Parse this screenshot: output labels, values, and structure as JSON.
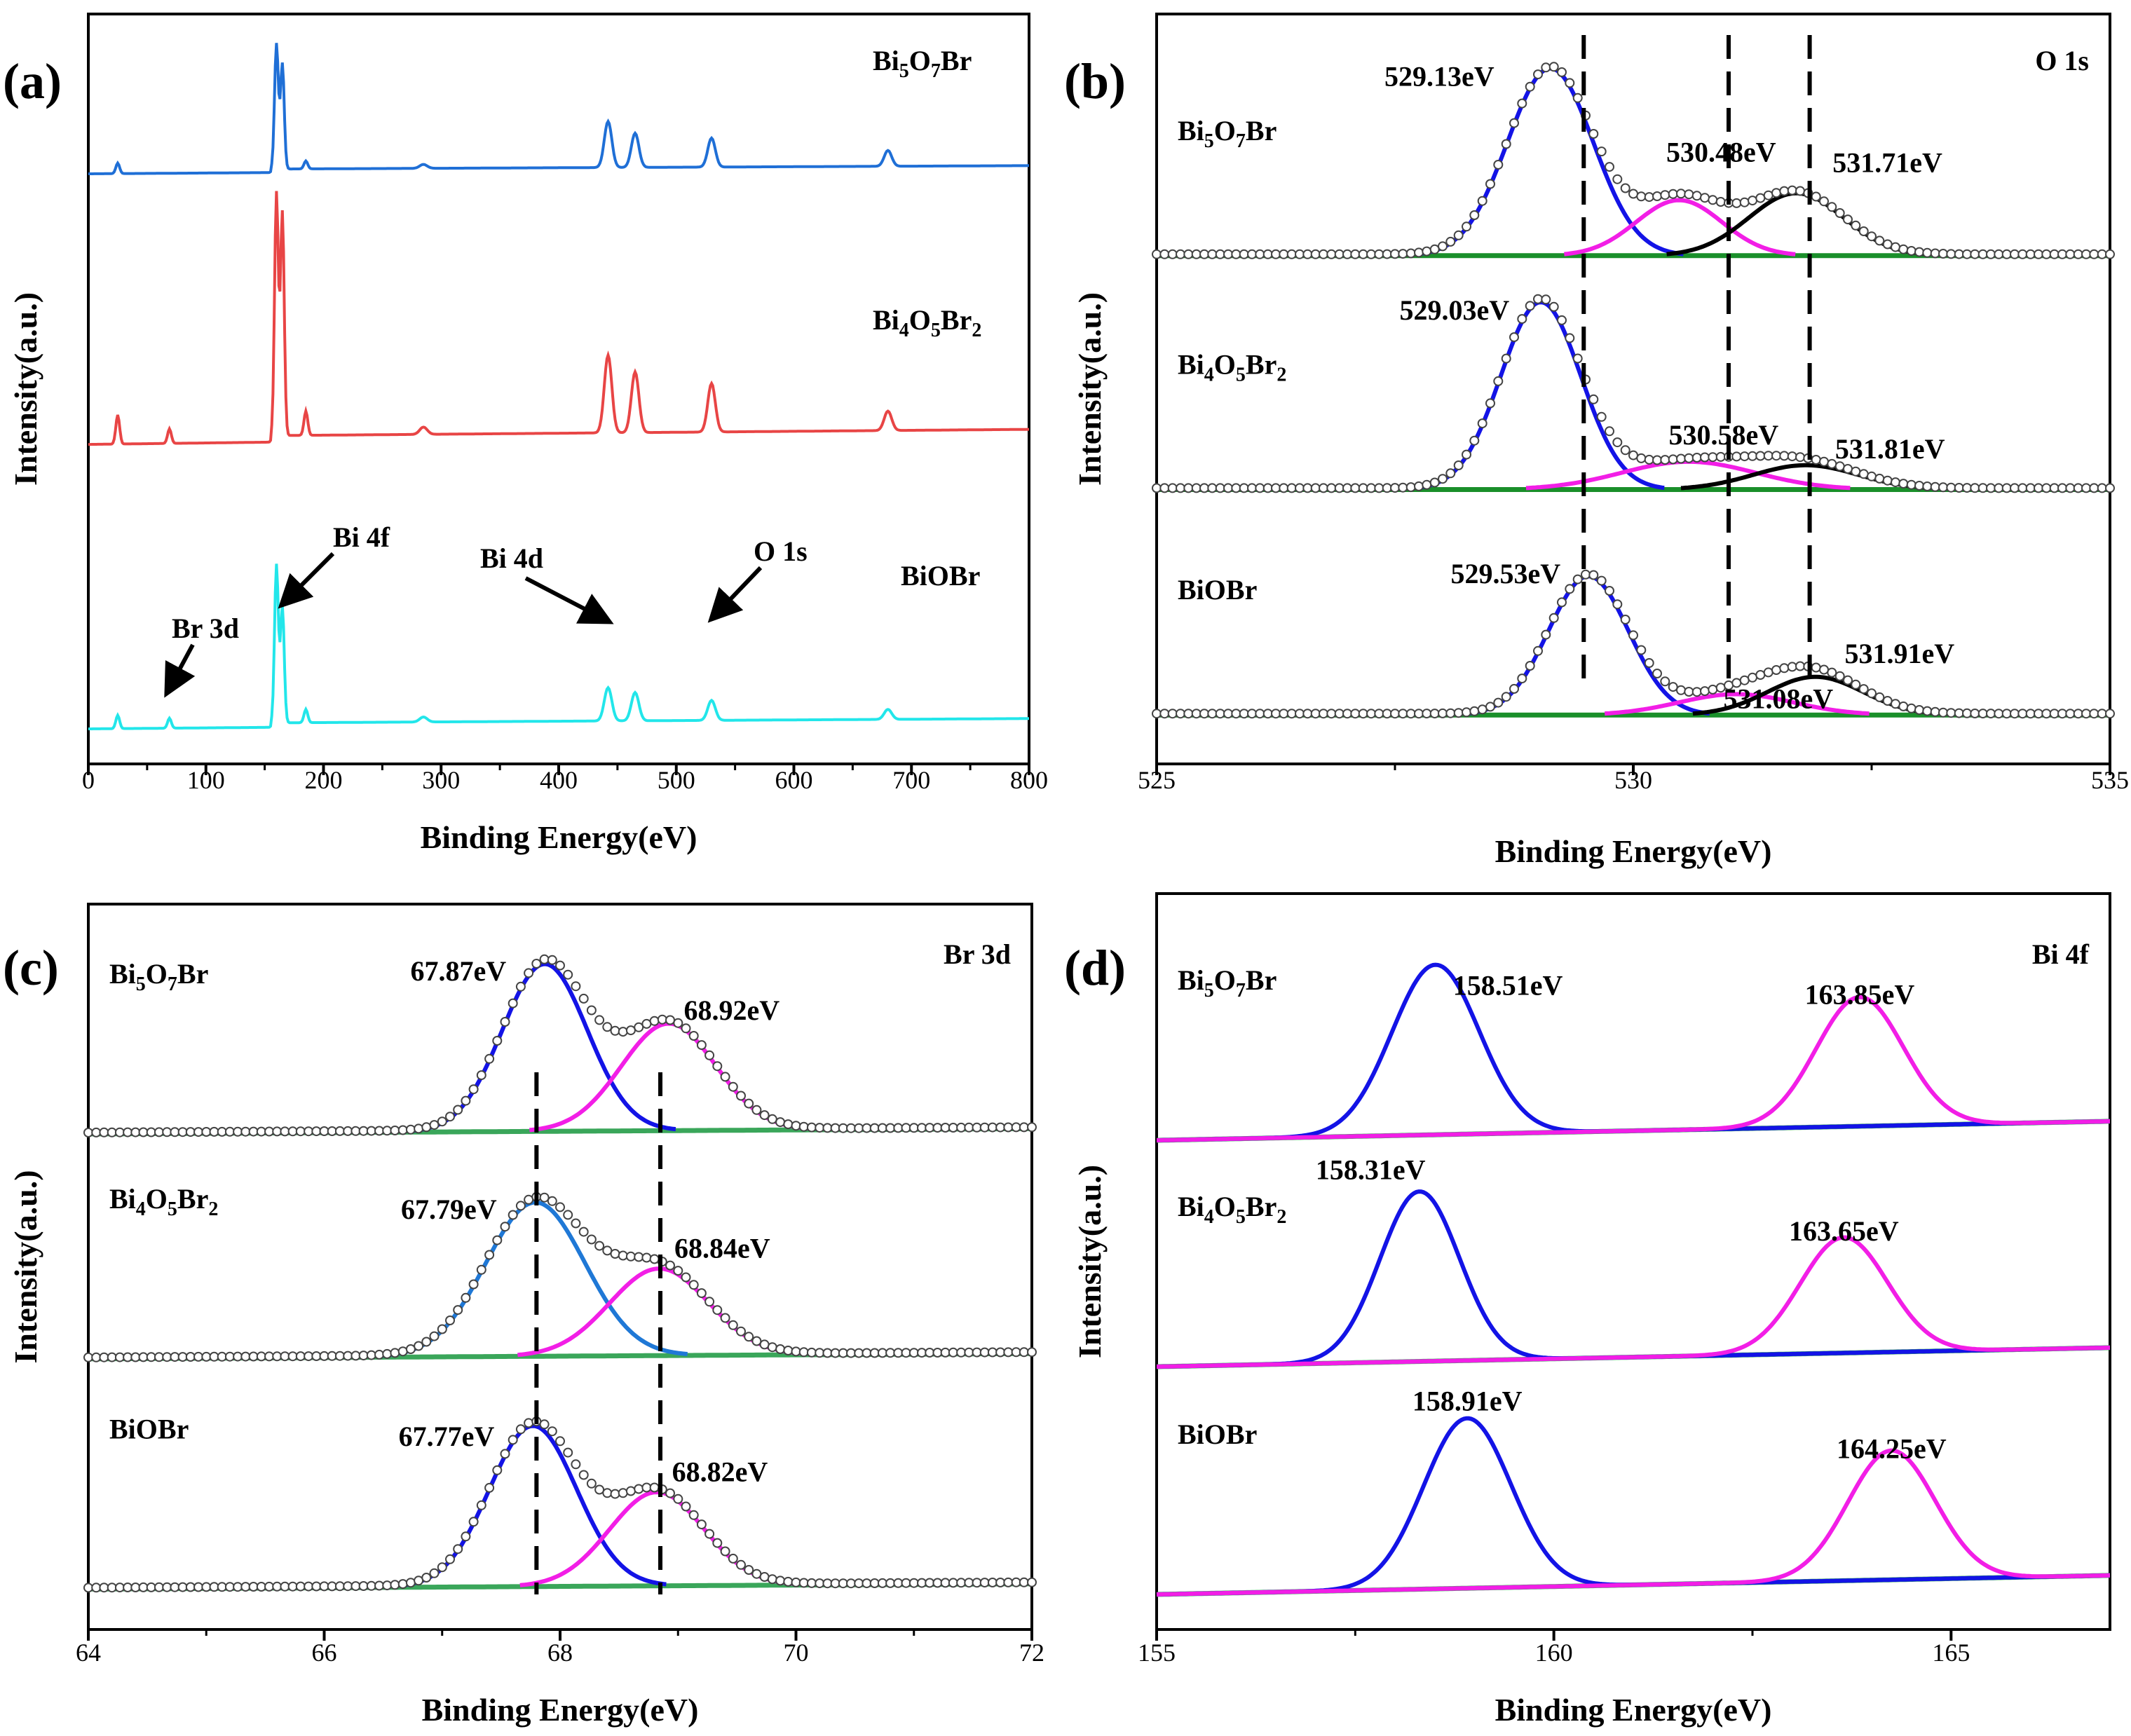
{
  "colors": {
    "axis": "#000000",
    "a_Bi5O7Br": "#1f6fd6",
    "a_Bi4O5Br2": "#e84545",
    "a_BiOBr": "#22e6ea",
    "main_fit": "#1313e6",
    "main_fit_alt": "#1f78d6",
    "second_fit": "#f21ee6",
    "third_fit": "#000000",
    "background": "#1a8f2a",
    "background_d": "#3aa65a",
    "marker": "#444444"
  },
  "chart_data": [
    {
      "id": "a",
      "type": "line",
      "panel_label": "(a)",
      "xlabel": "Binding Energy(eV)",
      "ylabel": "Intensity(a.u.)",
      "xlim": [
        0,
        800
      ],
      "xticks": [
        "0",
        "100",
        "200",
        "300",
        "400",
        "500",
        "600",
        "700",
        "800"
      ],
      "series": [
        {
          "name": "Bi5O7Br",
          "label_parts": [
            "Bi",
            "5",
            "O",
            "7",
            "Br"
          ],
          "offset": 0.8,
          "scale": 0.19,
          "peaks": [
            [
              25,
              0.08
            ],
            [
              160,
              0.95
            ],
            [
              165,
              0.8
            ],
            [
              185,
              0.06
            ],
            [
              285,
              0.03
            ],
            [
              442,
              0.35
            ],
            [
              465,
              0.26
            ],
            [
              530,
              0.22
            ],
            [
              680,
              0.12
            ]
          ]
        },
        {
          "name": "Bi4O5Br2",
          "label_parts": [
            "Bi",
            "4",
            "O",
            "5",
            "Br",
            "2"
          ],
          "offset": 0.41,
          "scale": 0.35,
          "peaks": [
            [
              25,
              0.12
            ],
            [
              69,
              0.06
            ],
            [
              160,
              1.0
            ],
            [
              165,
              0.92
            ],
            [
              185,
              0.1
            ],
            [
              285,
              0.03
            ],
            [
              442,
              0.32
            ],
            [
              465,
              0.25
            ],
            [
              530,
              0.2
            ],
            [
              680,
              0.08
            ]
          ]
        },
        {
          "name": "BiOBr",
          "label_parts": [
            "BiOBr"
          ],
          "offset": 0.0,
          "scale": 0.24,
          "peaks": [
            [
              25,
              0.08
            ],
            [
              69,
              0.06
            ],
            [
              160,
              0.95
            ],
            [
              165,
              0.7
            ],
            [
              185,
              0.08
            ],
            [
              285,
              0.03
            ],
            [
              442,
              0.2
            ],
            [
              465,
              0.17
            ],
            [
              530,
              0.12
            ],
            [
              680,
              0.06
            ]
          ]
        }
      ],
      "annotations": [
        "Br 3d",
        "Bi 4f",
        "Bi 4d",
        "O 1s"
      ]
    },
    {
      "id": "b",
      "type": "line",
      "panel_label": "(b)",
      "title": "O 1s",
      "xlabel": "Binding Energy(eV)",
      "ylabel": "Intensity(a.u.)",
      "xlim": [
        525,
        535
      ],
      "xticks": [
        "525",
        "530",
        "535"
      ],
      "dashed_lines": [
        529.48,
        531.0,
        531.85
      ],
      "series": [
        {
          "name": "Bi5O7Br",
          "label_parts": [
            "Bi",
            "5",
            "O",
            "7",
            "Br"
          ],
          "baseline": 0.682,
          "peaks": [
            {
              "center": 529.13,
              "height": 0.27,
              "width": 0.45,
              "label": "529.13eV"
            },
            {
              "center": 530.48,
              "height": 0.08,
              "width": 0.45,
              "label": "530.48eV"
            },
            {
              "center": 531.71,
              "height": 0.09,
              "width": 0.5,
              "label": "531.71eV"
            }
          ]
        },
        {
          "name": "Bi4O5Br2",
          "label_parts": [
            "Bi",
            "4",
            "O",
            "5",
            "Br",
            "2"
          ],
          "baseline": 0.345,
          "peaks": [
            {
              "center": 529.03,
              "height": 0.27,
              "width": 0.42,
              "label": "529.03eV"
            },
            {
              "center": 530.58,
              "height": 0.04,
              "width": 0.7,
              "label": "530.58eV"
            },
            {
              "center": 531.81,
              "height": 0.035,
              "width": 0.55,
              "label": "531.81eV"
            }
          ]
        },
        {
          "name": "BiOBr",
          "label_parts": [
            "BiOBr"
          ],
          "baseline": 0.02,
          "peaks": [
            {
              "center": 529.53,
              "height": 0.2,
              "width": 0.42,
              "label": "529.53eV"
            },
            {
              "center": 531.08,
              "height": 0.03,
              "width": 0.6,
              "label": "531.08eV"
            },
            {
              "center": 531.91,
              "height": 0.055,
              "width": 0.5,
              "label": "531.91eV"
            }
          ]
        }
      ]
    },
    {
      "id": "c",
      "type": "line",
      "panel_label": "(c)",
      "title": "Br 3d",
      "xlabel": "Binding Energy(eV)",
      "ylabel": "Intensity(a.u.)",
      "xlim": [
        64,
        72
      ],
      "xticks": [
        "64",
        "66",
        "68",
        "70",
        "72"
      ],
      "dashed_lines": [
        67.8,
        68.85
      ],
      "series": [
        {
          "name": "Bi5O7Br",
          "label_parts": [
            "Bi",
            "5",
            "O",
            "7",
            "Br"
          ],
          "baseline": 0.688,
          "peaks": [
            {
              "center": 67.87,
              "height": 0.25,
              "width": 0.36,
              "label": "67.87eV"
            },
            {
              "center": 68.92,
              "height": 0.16,
              "width": 0.4,
              "label": "68.92eV"
            }
          ]
        },
        {
          "name": "Bi4O5Br2",
          "label_parts": [
            "Bi",
            "4",
            "O",
            "5",
            "Br",
            "2"
          ],
          "baseline": 0.352,
          "peaks": [
            {
              "center": 67.79,
              "height": 0.23,
              "width": 0.42,
              "label": "67.79eV"
            },
            {
              "center": 68.84,
              "height": 0.13,
              "width": 0.42,
              "label": "68.84eV"
            }
          ]
        },
        {
          "name": "BiOBr",
          "label_parts": [
            "BiOBr"
          ],
          "baseline": 0.008,
          "peaks": [
            {
              "center": 67.77,
              "height": 0.24,
              "width": 0.37,
              "label": "67.77eV"
            },
            {
              "center": 68.82,
              "height": 0.14,
              "width": 0.4,
              "label": "68.82eV"
            }
          ]
        }
      ]
    },
    {
      "id": "d",
      "type": "line",
      "panel_label": "(d)",
      "title": "Bi 4f",
      "xlabel": "Binding Energy(eV)",
      "ylabel": "Intensity(a.u.)",
      "xlim": [
        155,
        167
      ],
      "xticks": [
        "155",
        "160",
        "165"
      ],
      "series": [
        {
          "name": "Bi5O7Br",
          "label_parts": [
            "Bi",
            "5",
            "O",
            "7",
            "Br"
          ],
          "baseline": 0.668,
          "peaks": [
            {
              "center": 158.51,
              "height": 0.25,
              "width": 0.55,
              "label": "158.51eV"
            },
            {
              "center": 163.85,
              "height": 0.19,
              "width": 0.55,
              "label": "163.85eV"
            }
          ]
        },
        {
          "name": "Bi4O5Br2",
          "label_parts": [
            "Bi",
            "4",
            "O",
            "5",
            "Br",
            "2"
          ],
          "baseline": 0.335,
          "peaks": [
            {
              "center": 158.31,
              "height": 0.25,
              "width": 0.5,
              "label": "158.31eV"
            },
            {
              "center": 163.65,
              "height": 0.17,
              "width": 0.55,
              "label": "163.65eV"
            }
          ]
        },
        {
          "name": "BiOBr",
          "label_parts": [
            "BiOBr"
          ],
          "baseline": 0.0,
          "peaks": [
            {
              "center": 158.91,
              "height": 0.25,
              "width": 0.55,
              "label": "158.91eV"
            },
            {
              "center": 164.25,
              "height": 0.19,
              "width": 0.55,
              "label": "164.25eV"
            }
          ]
        }
      ]
    }
  ]
}
